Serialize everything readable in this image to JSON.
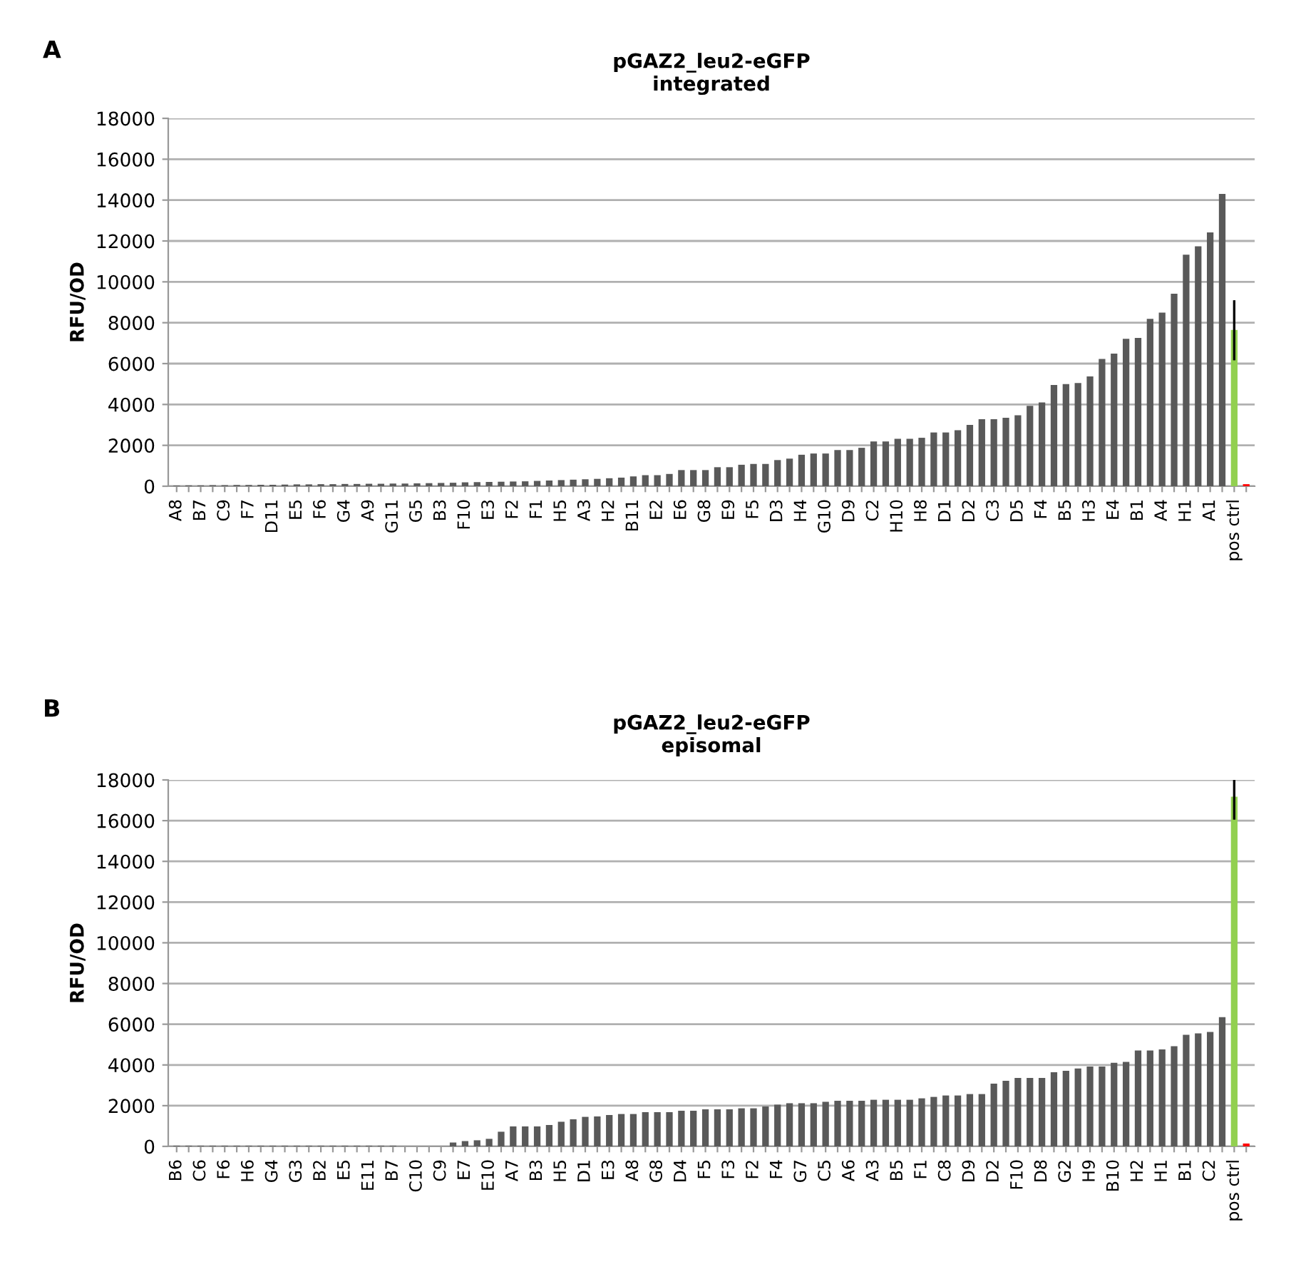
{
  "chart_data": [
    {
      "type": "bar",
      "title": "pGAZ2_leu2-eGFP",
      "subtitle": "integrated",
      "ylabel": "RFU/OD",
      "annotations": [
        "A"
      ],
      "categories": [
        "A8",
        null,
        "B7",
        null,
        "C9",
        null,
        "F7",
        null,
        "D11",
        null,
        "E5",
        null,
        "F6",
        null,
        "G4",
        null,
        "A9",
        null,
        "G11",
        null,
        "G5",
        null,
        "B3",
        null,
        "F10",
        null,
        "E3",
        null,
        "F2",
        null,
        "F1",
        null,
        "H5",
        null,
        "A3",
        null,
        "H2",
        null,
        "B11",
        null,
        "E2",
        null,
        "E6",
        null,
        "G8",
        null,
        "E9",
        null,
        "F5",
        null,
        "D3",
        null,
        "H4",
        null,
        "G10",
        null,
        "D9",
        null,
        "C2",
        null,
        "H10",
        null,
        "H8",
        null,
        "D1",
        null,
        "D2",
        null,
        "C3",
        null,
        "D5",
        null,
        "F4",
        null,
        "B5",
        null,
        "H3",
        null,
        "E4",
        null,
        "B1",
        null,
        "A4",
        null,
        "H1",
        null,
        "A1",
        null,
        "pos ctrl",
        null
      ],
      "values": [
        30,
        40,
        40,
        50,
        50,
        60,
        60,
        70,
        70,
        80,
        90,
        90,
        100,
        100,
        110,
        110,
        120,
        120,
        130,
        130,
        140,
        150,
        160,
        170,
        190,
        200,
        210,
        220,
        230,
        240,
        260,
        280,
        300,
        320,
        340,
        360,
        390,
        420,
        480,
        540,
        540,
        600,
        790,
        790,
        790,
        930,
        930,
        1050,
        1090,
        1090,
        1280,
        1350,
        1540,
        1600,
        1600,
        1770,
        1770,
        1880,
        2190,
        2190,
        2320,
        2320,
        2370,
        2630,
        2630,
        2740,
        3000,
        3280,
        3280,
        3350,
        3470,
        3930,
        4100,
        4950,
        5000,
        5050,
        5370,
        6230,
        6490,
        7210,
        7260,
        8190,
        8490,
        9420,
        11330,
        11740,
        12420,
        14300,
        7650,
        100
      ],
      "errors": [
        null,
        null,
        null,
        null,
        null,
        null,
        null,
        null,
        null,
        null,
        null,
        null,
        null,
        null,
        null,
        null,
        null,
        null,
        null,
        null,
        null,
        null,
        null,
        null,
        null,
        null,
        null,
        null,
        null,
        null,
        null,
        null,
        null,
        null,
        null,
        null,
        null,
        null,
        null,
        null,
        null,
        null,
        null,
        null,
        null,
        null,
        null,
        null,
        null,
        null,
        null,
        null,
        null,
        null,
        null,
        null,
        null,
        null,
        null,
        null,
        null,
        null,
        null,
        null,
        null,
        null,
        null,
        null,
        null,
        null,
        null,
        null,
        null,
        null,
        null,
        null,
        null,
        null,
        null,
        null,
        null,
        null,
        null,
        null,
        null,
        null,
        null,
        null,
        [
          6160,
          9100
        ],
        null
      ],
      "colors": [
        "#595959",
        "#595959",
        "#595959",
        "#595959",
        "#595959",
        "#595959",
        "#595959",
        "#595959",
        "#595959",
        "#595959",
        "#595959",
        "#595959",
        "#595959",
        "#595959",
        "#595959",
        "#595959",
        "#595959",
        "#595959",
        "#595959",
        "#595959",
        "#595959",
        "#595959",
        "#595959",
        "#595959",
        "#595959",
        "#595959",
        "#595959",
        "#595959",
        "#595959",
        "#595959",
        "#595959",
        "#595959",
        "#595959",
        "#595959",
        "#595959",
        "#595959",
        "#595959",
        "#595959",
        "#595959",
        "#595959",
        "#595959",
        "#595959",
        "#595959",
        "#595959",
        "#595959",
        "#595959",
        "#595959",
        "#595959",
        "#595959",
        "#595959",
        "#595959",
        "#595959",
        "#595959",
        "#595959",
        "#595959",
        "#595959",
        "#595959",
        "#595959",
        "#595959",
        "#595959",
        "#595959",
        "#595959",
        "#595959",
        "#595959",
        "#595959",
        "#595959",
        "#595959",
        "#595959",
        "#595959",
        "#595959",
        "#595959",
        "#595959",
        "#595959",
        "#595959",
        "#595959",
        "#595959",
        "#595959",
        "#595959",
        "#595959",
        "#595959",
        "#595959",
        "#595959",
        "#595959",
        "#595959",
        "#595959",
        "#595959",
        "#595959",
        "#595959",
        "#92d050",
        "#ff0000"
      ],
      "ylim": [
        0,
        18000
      ],
      "yticks": [
        0,
        2000,
        4000,
        6000,
        8000,
        10000,
        12000,
        14000,
        16000,
        18000
      ],
      "grid": "y"
    },
    {
      "type": "bar",
      "title": "pGAZ2_leu2-eGFP",
      "subtitle": "episomal",
      "ylabel": "RFU/OD",
      "annotations": [
        "B"
      ],
      "categories": [
        "B6",
        null,
        "C6",
        null,
        "F6",
        null,
        "H6",
        null,
        "G4",
        null,
        "G3",
        null,
        "B2",
        null,
        "E5",
        null,
        "E11",
        null,
        "B7",
        null,
        "C10",
        null,
        "C9",
        null,
        "E7",
        null,
        "E10",
        null,
        "A7",
        null,
        "B3",
        null,
        "H5",
        null,
        "D1",
        null,
        "E3",
        null,
        "A8",
        null,
        "G8",
        null,
        "D4",
        null,
        "F5",
        null,
        "F3",
        null,
        "F2",
        null,
        "F4",
        null,
        "G7",
        null,
        "C5",
        null,
        "A6",
        null,
        "A3",
        null,
        "B5",
        null,
        "F1",
        null,
        "C8",
        null,
        "D9",
        null,
        "D2",
        null,
        "F10",
        null,
        "D8",
        null,
        "G2",
        null,
        "H9",
        null,
        "B10",
        null,
        "H2",
        null,
        "H1",
        null,
        "B1",
        null,
        "C2",
        null,
        "pos ctrl",
        null
      ],
      "values": [
        30,
        30,
        30,
        30,
        30,
        30,
        30,
        30,
        30,
        30,
        30,
        30,
        30,
        30,
        30,
        30,
        30,
        30,
        30,
        null,
        null,
        null,
        null,
        190,
        260,
        300,
        370,
        720,
        980,
        980,
        980,
        1050,
        1210,
        1330,
        1450,
        1470,
        1540,
        1590,
        1590,
        1680,
        1680,
        1680,
        1750,
        1750,
        1820,
        1820,
        1820,
        1870,
        1870,
        1960,
        2050,
        2120,
        2120,
        2120,
        2190,
        2240,
        2240,
        2240,
        2290,
        2290,
        2290,
        2290,
        2360,
        2430,
        2500,
        2500,
        2570,
        2570,
        3080,
        3220,
        3360,
        3360,
        3360,
        3640,
        3710,
        3830,
        3920,
        3920,
        4110,
        4150,
        4710,
        4710,
        4760,
        4920,
        5480,
        5550,
        5620,
        6350,
        17180,
        140
      ],
      "errors": [
        null,
        null,
        null,
        null,
        null,
        null,
        null,
        null,
        null,
        null,
        null,
        null,
        null,
        null,
        null,
        null,
        null,
        null,
        null,
        null,
        null,
        null,
        null,
        null,
        null,
        null,
        null,
        null,
        null,
        null,
        null,
        null,
        null,
        null,
        null,
        null,
        null,
        null,
        null,
        null,
        null,
        null,
        null,
        null,
        null,
        null,
        null,
        null,
        null,
        null,
        null,
        null,
        null,
        null,
        null,
        null,
        null,
        null,
        null,
        null,
        null,
        null,
        null,
        null,
        null,
        null,
        null,
        null,
        null,
        null,
        null,
        null,
        null,
        null,
        null,
        null,
        null,
        null,
        null,
        null,
        null,
        null,
        null,
        null,
        null,
        null,
        null,
        null,
        [
          16050,
          18000
        ],
        null
      ],
      "colors": [
        "#595959",
        "#595959",
        "#595959",
        "#595959",
        "#595959",
        "#595959",
        "#595959",
        "#595959",
        "#595959",
        "#595959",
        "#595959",
        "#595959",
        "#595959",
        "#595959",
        "#595959",
        "#595959",
        "#595959",
        "#595959",
        "#595959",
        "#595959",
        "#595959",
        "#595959",
        "#595959",
        "#595959",
        "#595959",
        "#595959",
        "#595959",
        "#595959",
        "#595959",
        "#595959",
        "#595959",
        "#595959",
        "#595959",
        "#595959",
        "#595959",
        "#595959",
        "#595959",
        "#595959",
        "#595959",
        "#595959",
        "#595959",
        "#595959",
        "#595959",
        "#595959",
        "#595959",
        "#595959",
        "#595959",
        "#595959",
        "#595959",
        "#595959",
        "#595959",
        "#595959",
        "#595959",
        "#595959",
        "#595959",
        "#595959",
        "#595959",
        "#595959",
        "#595959",
        "#595959",
        "#595959",
        "#595959",
        "#595959",
        "#595959",
        "#595959",
        "#595959",
        "#595959",
        "#595959",
        "#595959",
        "#595959",
        "#595959",
        "#595959",
        "#595959",
        "#595959",
        "#595959",
        "#595959",
        "#595959",
        "#595959",
        "#595959",
        "#595959",
        "#595959",
        "#595959",
        "#595959",
        "#595959",
        "#595959",
        "#595959",
        "#595959",
        "#595959",
        "#92d050",
        "#ff0000"
      ],
      "ylim": [
        0,
        18000
      ],
      "yticks": [
        0,
        2000,
        4000,
        6000,
        8000,
        10000,
        12000,
        14000,
        16000,
        18000
      ],
      "grid": "y"
    }
  ]
}
